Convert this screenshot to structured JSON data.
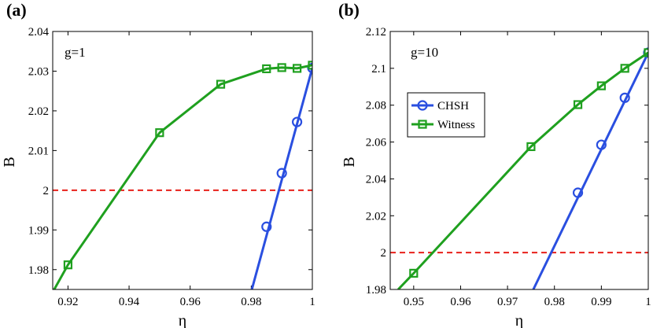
{
  "chart_data": [
    {
      "type": "line",
      "panel_label": "(a)",
      "annotation": "g=1",
      "xlabel": "η",
      "ylabel": "B",
      "xlim": [
        0.915,
        1.0
      ],
      "ylim": [
        1.975,
        2.04
      ],
      "xticks": [
        0.92,
        0.94,
        0.96,
        0.98,
        1.0
      ],
      "xtick_labels": [
        "0.92",
        "0.94",
        "0.96",
        "0.98",
        "1"
      ],
      "yticks": [
        1.98,
        1.99,
        2.0,
        2.01,
        2.02,
        2.03,
        2.04
      ],
      "ytick_labels": [
        "1.98",
        "1.99",
        "2",
        "2.01",
        "2.02",
        "2.03",
        "2.04"
      ],
      "threshold": 2.0,
      "legend": null,
      "series": [
        {
          "name": "CHSH",
          "color": "#2a4fe0",
          "marker": "circle",
          "line": [
            [
              0.9802,
              1.975
            ],
            [
              1.0,
              2.0308
            ]
          ],
          "x": [
            0.985,
            0.99,
            0.995,
            1.0
          ],
          "values": [
            1.9908,
            2.0043,
            2.0172,
            2.0308
          ]
        },
        {
          "name": "Witness",
          "color": "#1fa01f",
          "marker": "square",
          "line": [
            [
              0.9155,
              1.975
            ],
            [
              0.92,
              1.9812
            ],
            [
              0.95,
              2.0145
            ],
            [
              0.97,
              2.0267
            ],
            [
              0.985,
              2.0306
            ],
            [
              0.99,
              2.0309
            ],
            [
              0.995,
              2.0307
            ],
            [
              1.0,
              2.0315
            ]
          ],
          "x": [
            0.92,
            0.95,
            0.97,
            0.985,
            0.99,
            0.995,
            1.0
          ],
          "values": [
            1.9812,
            2.0145,
            2.0267,
            2.0306,
            2.0309,
            2.0307,
            2.0315
          ]
        }
      ]
    },
    {
      "type": "line",
      "panel_label": "(b)",
      "annotation": "g=10",
      "xlabel": "η",
      "ylabel": "B",
      "xlim": [
        0.945,
        1.0
      ],
      "ylim": [
        1.98,
        2.12
      ],
      "xticks": [
        0.95,
        0.96,
        0.97,
        0.98,
        0.99,
        1.0
      ],
      "xtick_labels": [
        "0.95",
        "0.96",
        "0.97",
        "0.98",
        "0.99",
        "1"
      ],
      "yticks": [
        1.98,
        2.0,
        2.02,
        2.04,
        2.06,
        2.08,
        2.1,
        2.12
      ],
      "ytick_labels": [
        "1.98",
        "2",
        "2.02",
        "2.04",
        "2.06",
        "2.08",
        "2.1",
        "2.12"
      ],
      "threshold": 2.0,
      "legend": "upper-left",
      "series": [
        {
          "name": "CHSH",
          "color": "#2a4fe0",
          "marker": "circle",
          "line": [
            [
              0.9755,
              1.98
            ],
            [
              1.0,
              2.1085
            ]
          ],
          "x": [
            0.985,
            0.99,
            0.995,
            1.0
          ],
          "values": [
            2.0325,
            2.0585,
            2.084,
            2.1085
          ]
        },
        {
          "name": "Witness",
          "color": "#1fa01f",
          "marker": "square",
          "line": [
            [
              0.9467,
              1.98
            ],
            [
              0.95,
              1.9888
            ],
            [
              0.975,
              2.0575
            ],
            [
              0.985,
              2.0803
            ],
            [
              0.99,
              2.0905
            ],
            [
              0.995,
              2.1
            ],
            [
              1.0,
              2.1085
            ]
          ],
          "x": [
            0.95,
            0.975,
            0.985,
            0.99,
            0.995,
            1.0
          ],
          "values": [
            1.9888,
            2.0575,
            2.0803,
            2.0905,
            2.1,
            2.1085
          ]
        }
      ]
    }
  ]
}
